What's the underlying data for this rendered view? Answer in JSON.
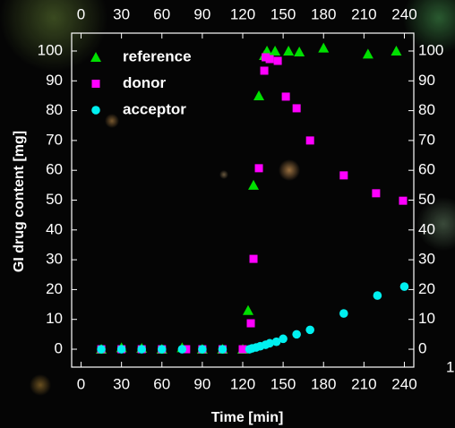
{
  "chart_data": {
    "type": "scatter",
    "x_label": "Time [min]",
    "y_label": "GI drug content [mg]",
    "xlim": [
      -7,
      247
    ],
    "ylim": [
      -6,
      106
    ],
    "xticks": [
      0,
      30,
      60,
      90,
      120,
      150,
      180,
      210,
      240
    ],
    "yticks": [
      0,
      10,
      20,
      30,
      40,
      50,
      60,
      70,
      80,
      90,
      100
    ],
    "legend": "upper left",
    "mirror_axes": true,
    "series": [
      {
        "name": "reference",
        "color": "#00e000",
        "marker": "triangle",
        "x": [
          15,
          30,
          45,
          60,
          75,
          90,
          105,
          120,
          124,
          128,
          132,
          136,
          138,
          144,
          154,
          162,
          180,
          213,
          234
        ],
        "values": [
          0,
          0.5,
          0.3,
          0,
          0.5,
          0,
          0,
          0,
          13,
          55,
          85,
          98.5,
          100,
          100,
          100,
          99.7,
          101,
          99,
          100
        ]
      },
      {
        "name": "donor",
        "color": "#ff00ff",
        "marker": "square",
        "x": [
          15,
          30,
          45,
          60,
          78,
          90,
          105,
          120,
          126,
          128,
          132,
          136,
          137,
          140,
          146,
          152,
          160,
          170,
          195,
          219,
          239
        ],
        "values": [
          0,
          0,
          0,
          0,
          0,
          0,
          0,
          0,
          8.7,
          30.3,
          60.7,
          93.4,
          97.9,
          97.3,
          96.7,
          84.7,
          80.8,
          70,
          58.3,
          52.3,
          49.8
        ]
      },
      {
        "name": "acceptor",
        "color": "#00f0f0",
        "marker": "circle",
        "x": [
          15,
          30,
          45,
          60,
          75,
          90,
          105,
          125,
          127,
          130,
          133,
          137,
          140,
          145,
          150,
          160,
          170,
          195,
          220,
          240
        ],
        "values": [
          0,
          0,
          0,
          0,
          0,
          0,
          0,
          0,
          0.3,
          0.6,
          1,
          1.5,
          2,
          2.5,
          3.5,
          5,
          6.5,
          12,
          18,
          21
        ]
      }
    ]
  },
  "edge_text": "1"
}
